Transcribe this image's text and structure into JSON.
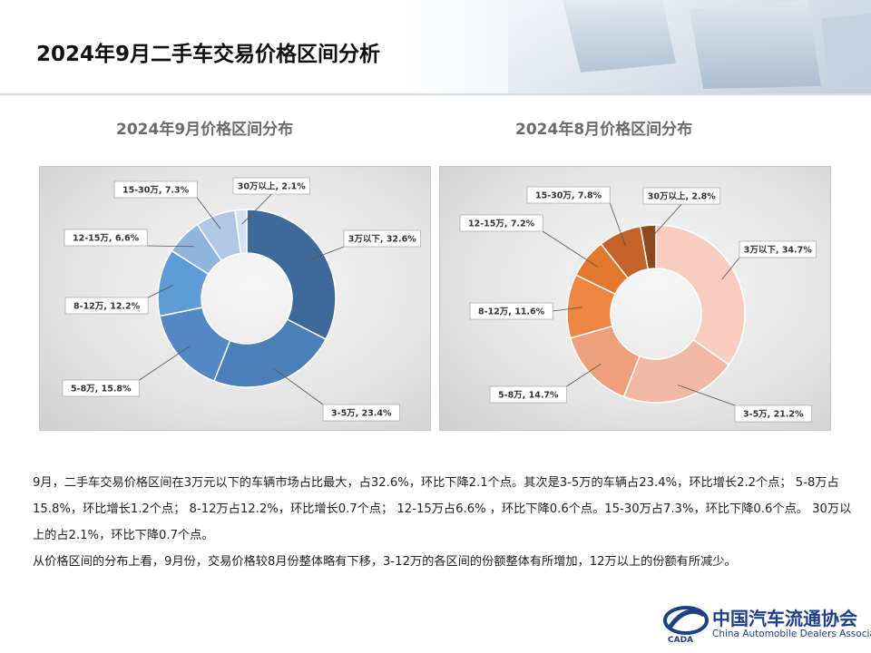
{
  "page": {
    "title": "2024年9月二手车交易价格区间分析"
  },
  "chart_data": [
    {
      "type": "pie",
      "variant": "donut",
      "title": "2024年9月价格区间分布",
      "categories": [
        "3万以下",
        "3-5万",
        "5-8万",
        "8-12万",
        "12-15万",
        "15-30万",
        "30万以上"
      ],
      "values": [
        32.6,
        23.4,
        15.8,
        12.2,
        6.6,
        7.3,
        2.1
      ],
      "labels": [
        "3万以下, 32.6%",
        "3-5万, 23.4%",
        "5-8万, 15.8%",
        "8-12万, 12.2%",
        "12-15万, 6.6%",
        "15-30万, 7.3%",
        "30万以上, 2.1%"
      ],
      "colors": [
        "#3e6a9a",
        "#4a7fb8",
        "#5388c4",
        "#5f9bd6",
        "#8fb4de",
        "#b0c8e6",
        "#d3e1f2"
      ]
    },
    {
      "type": "pie",
      "variant": "donut",
      "title": "2024年8月价格区间分布",
      "categories": [
        "3万以下",
        "3-5万",
        "5-8万",
        "8-12万",
        "12-15万",
        "15-30万",
        "30万以上"
      ],
      "values": [
        34.7,
        21.2,
        14.7,
        11.6,
        7.2,
        7.8,
        2.8
      ],
      "labels": [
        "3万以下, 34.7%",
        "3-5万, 21.2%",
        "5-8万, 14.7%",
        "8-12万, 11.6%",
        "12-15万, 7.2%",
        "15-30万, 7.8%",
        "30万以上, 2.8%"
      ],
      "colors": [
        "#f6cdbf",
        "#f1b8a3",
        "#ee9f7c",
        "#ec8642",
        "#e2782f",
        "#c4622a",
        "#8e4a1d"
      ]
    }
  ],
  "text": {
    "p1": "9月，二手车交易价格区间在3万元以下的车辆市场占比最大，占32.6%，环比下降2.1个点。其次是3-5万的车辆占23.4%，环比增长2.2个点； 5-8万占15.8%，环比增长1.2个点； 8-12万占12.2%，环比增长0.7个点； 12-15万占6.6% ，环比下降0.6个点。15-30万占7.3%，环比下降0.6个点。 30万以上的占2.1%，环比下降0.7个点。",
    "p2": "从价格区间的分布上看，9月份，交易价格较8月份整体略有下移，3-12万的各区间的份额整体有所增加，12万以上的份额有所减少。"
  },
  "logo": {
    "cn": "中国汽车流通协会",
    "en": "China Automobile Dealers Association"
  }
}
